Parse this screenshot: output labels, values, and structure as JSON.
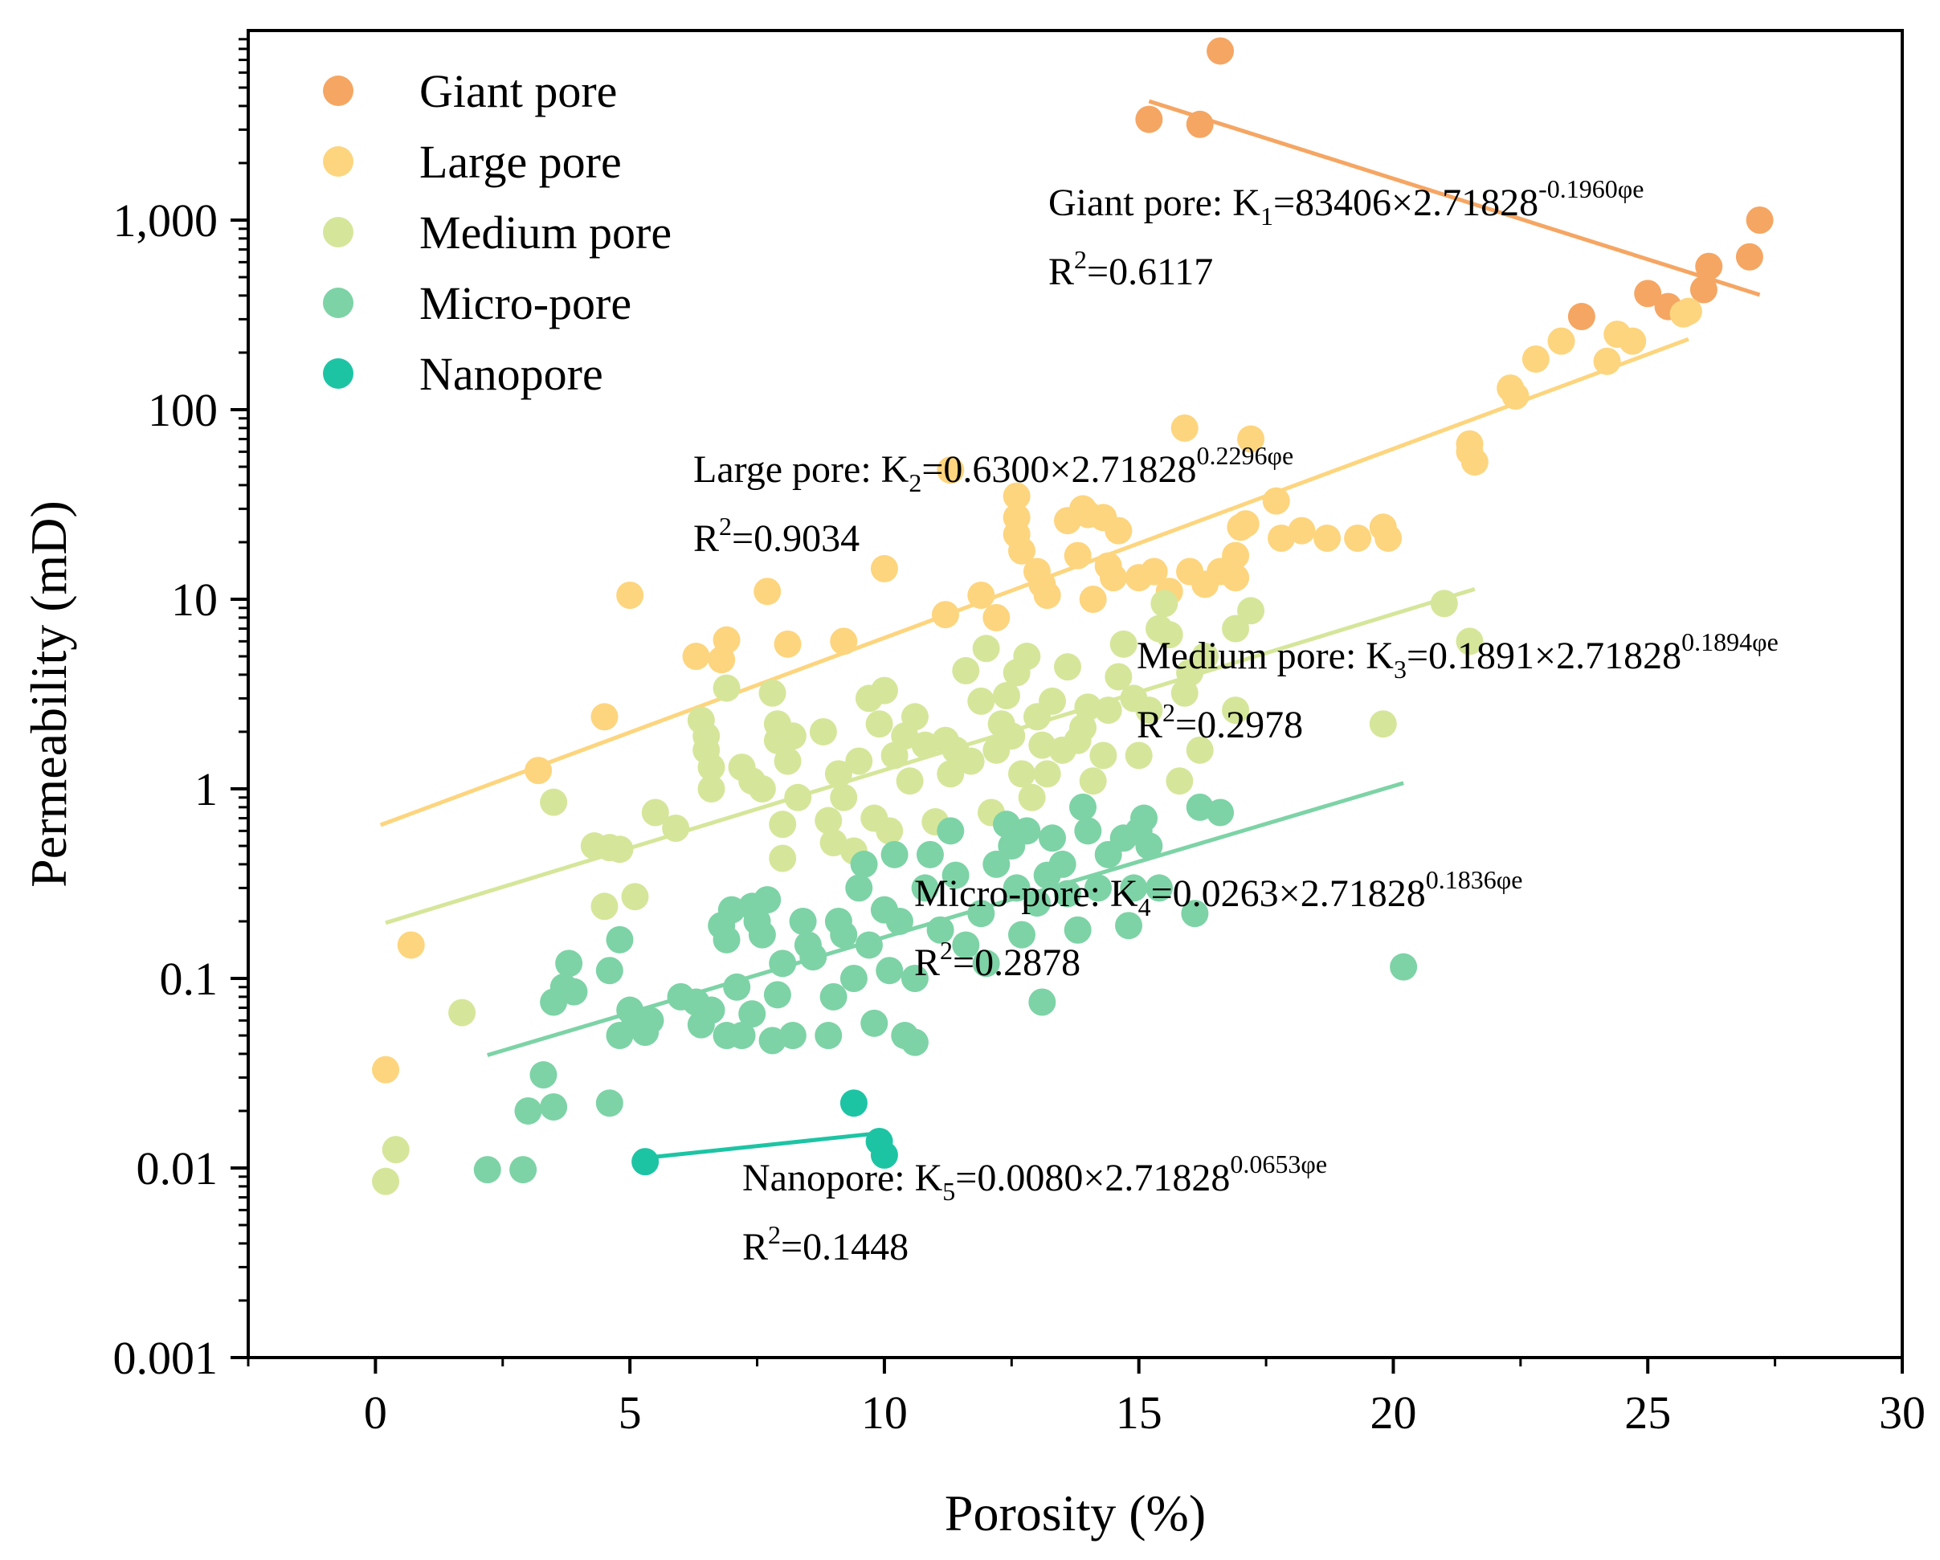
{
  "chart_data": {
    "type": "scatter",
    "title": "",
    "xlabel": "Porosity (%)",
    "ylabel": "Permeability (mD)",
    "xlim": [
      -2.5,
      30
    ],
    "ylim": [
      0.001,
      10000
    ],
    "y_scale": "log",
    "x_ticks": [
      0,
      5,
      10,
      15,
      20,
      25,
      30
    ],
    "y_ticks": [
      0.001,
      0.01,
      0.1,
      1,
      10,
      100,
      1000
    ],
    "y_tick_labels": [
      "0.001",
      "0.01",
      "0.1",
      "1",
      "10",
      "100",
      "1,000"
    ],
    "grid": false,
    "legend_position": "top-left",
    "series": [
      {
        "name": "Giant pore",
        "color": "#F5A663",
        "points": [
          [
            16.6,
            7800
          ],
          [
            15.2,
            3400
          ],
          [
            16.2,
            3200
          ],
          [
            27.2,
            1000
          ],
          [
            27.0,
            640
          ],
          [
            26.2,
            570
          ],
          [
            26.1,
            430
          ],
          [
            25.0,
            410
          ],
          [
            25.4,
            350
          ],
          [
            23.7,
            310
          ]
        ],
        "fit": {
          "a": 83406,
          "b": -0.196,
          "x_range": [
            15.2,
            27.2
          ]
        },
        "equation": {
          "prefix": "Giant pore: K",
          "sub": "1",
          "body": "=83406×2.71828",
          "sup": "-0.1960φe",
          "r2_prefix": "R",
          "r2_sup": "2",
          "r2_value": "=0.6117"
        }
      },
      {
        "name": "Large pore",
        "color": "#FDD57E",
        "points": [
          [
            0.2,
            0.033
          ],
          [
            0.7,
            0.15
          ],
          [
            3.2,
            1.25
          ],
          [
            4.5,
            2.4
          ],
          [
            5.0,
            10.5
          ],
          [
            6.3,
            5.0
          ],
          [
            6.8,
            4.8
          ],
          [
            6.9,
            6.1
          ],
          [
            7.7,
            11
          ],
          [
            8.1,
            5.8
          ],
          [
            9.2,
            6.0
          ],
          [
            10.0,
            14.5
          ],
          [
            11.2,
            8.3
          ],
          [
            11.3,
            48
          ],
          [
            11.9,
            10.5
          ],
          [
            12.2,
            8.0
          ],
          [
            12.6,
            35
          ],
          [
            12.6,
            27
          ],
          [
            12.6,
            22
          ],
          [
            12.7,
            18
          ],
          [
            13.0,
            14
          ],
          [
            13.1,
            12
          ],
          [
            13.2,
            10.5
          ],
          [
            13.6,
            26
          ],
          [
            13.9,
            30
          ],
          [
            13.8,
            17
          ],
          [
            14.0,
            28
          ],
          [
            14.1,
            10
          ],
          [
            14.3,
            27
          ],
          [
            14.4,
            15
          ],
          [
            14.5,
            13
          ],
          [
            14.6,
            23
          ],
          [
            15.0,
            13
          ],
          [
            15.3,
            14
          ],
          [
            15.6,
            11
          ],
          [
            15.9,
            80
          ],
          [
            16.0,
            14
          ],
          [
            16.3,
            12
          ],
          [
            16.6,
            14
          ],
          [
            16.9,
            13
          ],
          [
            16.9,
            17
          ],
          [
            17.0,
            24
          ],
          [
            17.1,
            25
          ],
          [
            17.2,
            70
          ],
          [
            17.7,
            33
          ],
          [
            17.8,
            21
          ],
          [
            18.2,
            23
          ],
          [
            18.7,
            21
          ],
          [
            19.3,
            21
          ],
          [
            19.8,
            24
          ],
          [
            19.9,
            21
          ],
          [
            21.5,
            66
          ],
          [
            21.5,
            60
          ],
          [
            21.6,
            53
          ],
          [
            22.3,
            130
          ],
          [
            22.4,
            118
          ],
          [
            22.8,
            185
          ],
          [
            23.3,
            230
          ],
          [
            24.2,
            180
          ],
          [
            24.4,
            250
          ],
          [
            24.7,
            230
          ],
          [
            25.7,
            320
          ],
          [
            25.8,
            330
          ]
        ],
        "fit": {
          "a": 0.63,
          "b": 0.2296,
          "x_range": [
            0.1,
            25.8
          ]
        },
        "equation": {
          "prefix": "Large pore: K",
          "sub": "2",
          "body": "=0.6300×2.71828",
          "sup": "0.2296φe",
          "r2_prefix": "R",
          "r2_sup": "2",
          "r2_value": "=0.9034"
        }
      },
      {
        "name": "Medium pore",
        "color": "#D5E69A",
        "points": [
          [
            0.2,
            0.0085
          ],
          [
            0.4,
            0.0125
          ],
          [
            1.7,
            0.066
          ],
          [
            3.5,
            0.85
          ],
          [
            4.3,
            0.5
          ],
          [
            4.6,
            0.49
          ],
          [
            4.8,
            0.48
          ],
          [
            4.5,
            0.24
          ],
          [
            5.1,
            0.27
          ],
          [
            5.5,
            0.75
          ],
          [
            5.9,
            0.62
          ],
          [
            6.4,
            2.3
          ],
          [
            6.5,
            1.9
          ],
          [
            6.5,
            1.6
          ],
          [
            6.6,
            1.3
          ],
          [
            6.6,
            1.0
          ],
          [
            6.9,
            3.4
          ],
          [
            7.2,
            1.3
          ],
          [
            7.4,
            1.1
          ],
          [
            7.6,
            1.0
          ],
          [
            7.8,
            3.2
          ],
          [
            7.9,
            2.2
          ],
          [
            7.9,
            1.8
          ],
          [
            8.0,
            0.65
          ],
          [
            8.0,
            0.43
          ],
          [
            8.1,
            1.4
          ],
          [
            8.2,
            1.9
          ],
          [
            8.3,
            0.9
          ],
          [
            8.8,
            2.0
          ],
          [
            8.9,
            0.68
          ],
          [
            9.0,
            0.52
          ],
          [
            9.1,
            1.2
          ],
          [
            9.2,
            0.9
          ],
          [
            9.4,
            0.47
          ],
          [
            9.5,
            1.4
          ],
          [
            9.7,
            3.0
          ],
          [
            9.8,
            0.7
          ],
          [
            9.9,
            2.2
          ],
          [
            10.0,
            3.3
          ],
          [
            10.1,
            0.6
          ],
          [
            10.2,
            1.5
          ],
          [
            10.4,
            1.9
          ],
          [
            10.5,
            1.1
          ],
          [
            10.6,
            2.4
          ],
          [
            10.8,
            1.7
          ],
          [
            11.0,
            0.67
          ],
          [
            11.2,
            1.8
          ],
          [
            11.3,
            1.2
          ],
          [
            11.4,
            1.6
          ],
          [
            11.6,
            4.2
          ],
          [
            11.7,
            1.4
          ],
          [
            11.9,
            2.9
          ],
          [
            12.0,
            5.5
          ],
          [
            12.1,
            0.75
          ],
          [
            12.2,
            1.6
          ],
          [
            12.3,
            2.2
          ],
          [
            12.4,
            3.1
          ],
          [
            12.5,
            1.9
          ],
          [
            12.6,
            4.1
          ],
          [
            12.7,
            1.2
          ],
          [
            12.8,
            5.0
          ],
          [
            12.9,
            0.9
          ],
          [
            13.0,
            2.4
          ],
          [
            13.1,
            1.7
          ],
          [
            13.2,
            1.2
          ],
          [
            13.3,
            2.9
          ],
          [
            13.5,
            1.6
          ],
          [
            13.6,
            4.4
          ],
          [
            13.8,
            1.8
          ],
          [
            13.9,
            2.1
          ],
          [
            14.0,
            2.7
          ],
          [
            14.1,
            1.1
          ],
          [
            14.3,
            1.5
          ],
          [
            14.4,
            2.6
          ],
          [
            14.6,
            3.9
          ],
          [
            14.7,
            5.8
          ],
          [
            14.9,
            3.0
          ],
          [
            15.0,
            1.5
          ],
          [
            15.2,
            2.6
          ],
          [
            15.4,
            7.0
          ],
          [
            15.5,
            9.5
          ],
          [
            15.6,
            6.5
          ],
          [
            15.8,
            1.1
          ],
          [
            15.9,
            3.2
          ],
          [
            16.0,
            4.1
          ],
          [
            16.2,
            1.6
          ],
          [
            16.3,
            5.0
          ],
          [
            16.9,
            7.0
          ],
          [
            16.9,
            2.6
          ],
          [
            17.2,
            8.7
          ],
          [
            19.8,
            2.2
          ],
          [
            21.0,
            9.5
          ],
          [
            21.5,
            6.0
          ]
        ],
        "fit": {
          "a": 0.1891,
          "b": 0.1894,
          "x_range": [
            0.2,
            21.6
          ]
        },
        "equation": {
          "prefix": "Medium pore: K",
          "sub": "3",
          "body": "=0.1891×2.71828",
          "sup": "0.1894φe",
          "r2_prefix": "R",
          "r2_sup": "2",
          "r2_value": "=0.2978"
        }
      },
      {
        "name": "Micro-pore",
        "color": "#7DD3A6",
        "points": [
          [
            2.2,
            0.0098
          ],
          [
            2.9,
            0.0098
          ],
          [
            3.0,
            0.02
          ],
          [
            3.3,
            0.031
          ],
          [
            3.5,
            0.021
          ],
          [
            3.5,
            0.075
          ],
          [
            3.7,
            0.09
          ],
          [
            3.8,
            0.12
          ],
          [
            3.9,
            0.085
          ],
          [
            4.6,
            0.022
          ],
          [
            4.6,
            0.11
          ],
          [
            4.8,
            0.16
          ],
          [
            4.8,
            0.05
          ],
          [
            5.0,
            0.068
          ],
          [
            5.1,
            0.058
          ],
          [
            5.3,
            0.052
          ],
          [
            5.4,
            0.06
          ],
          [
            6.0,
            0.08
          ],
          [
            6.3,
            0.075
          ],
          [
            6.4,
            0.057
          ],
          [
            6.6,
            0.068
          ],
          [
            6.8,
            0.19
          ],
          [
            6.9,
            0.16
          ],
          [
            6.9,
            0.05
          ],
          [
            7.0,
            0.23
          ],
          [
            7.1,
            0.09
          ],
          [
            7.2,
            0.05
          ],
          [
            7.4,
            0.24
          ],
          [
            7.4,
            0.065
          ],
          [
            7.5,
            0.2
          ],
          [
            7.6,
            0.17
          ],
          [
            7.7,
            0.26
          ],
          [
            7.8,
            0.047
          ],
          [
            7.9,
            0.082
          ],
          [
            8.0,
            0.12
          ],
          [
            8.2,
            0.05
          ],
          [
            8.4,
            0.2
          ],
          [
            8.5,
            0.15
          ],
          [
            8.6,
            0.13
          ],
          [
            8.9,
            0.05
          ],
          [
            9.0,
            0.08
          ],
          [
            9.1,
            0.2
          ],
          [
            9.2,
            0.17
          ],
          [
            9.4,
            0.1
          ],
          [
            9.5,
            0.3
          ],
          [
            9.6,
            0.4
          ],
          [
            9.7,
            0.15
          ],
          [
            9.8,
            0.058
          ],
          [
            10.0,
            0.23
          ],
          [
            10.1,
            0.11
          ],
          [
            10.2,
            0.45
          ],
          [
            10.3,
            0.2
          ],
          [
            10.4,
            0.05
          ],
          [
            10.6,
            0.046
          ],
          [
            10.6,
            0.1
          ],
          [
            10.8,
            0.3
          ],
          [
            10.9,
            0.45
          ],
          [
            11.1,
            0.18
          ],
          [
            11.3,
            0.6
          ],
          [
            11.4,
            0.35
          ],
          [
            11.6,
            0.15
          ],
          [
            11.9,
            0.22
          ],
          [
            12.0,
            0.12
          ],
          [
            12.2,
            0.4
          ],
          [
            12.4,
            0.65
          ],
          [
            12.5,
            0.5
          ],
          [
            12.6,
            0.3
          ],
          [
            12.7,
            0.17
          ],
          [
            12.8,
            0.6
          ],
          [
            13.0,
            0.25
          ],
          [
            13.1,
            0.075
          ],
          [
            13.2,
            0.35
          ],
          [
            13.3,
            0.55
          ],
          [
            13.5,
            0.4
          ],
          [
            13.6,
            0.28
          ],
          [
            13.8,
            0.18
          ],
          [
            13.9,
            0.8
          ],
          [
            14.0,
            0.6
          ],
          [
            14.2,
            0.3
          ],
          [
            14.4,
            0.45
          ],
          [
            14.7,
            0.55
          ],
          [
            14.8,
            0.19
          ],
          [
            14.9,
            0.3
          ],
          [
            15.0,
            0.6
          ],
          [
            15.1,
            0.7
          ],
          [
            15.2,
            0.5
          ],
          [
            15.4,
            0.3
          ],
          [
            16.1,
            0.22
          ],
          [
            16.2,
            0.8
          ],
          [
            16.6,
            0.75
          ],
          [
            20.2,
            0.115
          ]
        ],
        "fit": {
          "a": 0.0263,
          "b": 0.1836,
          "x_range": [
            2.2,
            20.2
          ]
        },
        "equation": {
          "prefix": "Micro-pore: K",
          "sub": "4",
          "body": "=0.0263×2.71828",
          "sup": "0.1836φe",
          "r2_prefix": "R",
          "r2_sup": "2",
          "r2_value": "=0.2878"
        }
      },
      {
        "name": "Nanopore",
        "color": "#1DC4A4",
        "points": [
          [
            5.3,
            0.0108
          ],
          [
            9.4,
            0.022
          ],
          [
            9.9,
            0.0138
          ],
          [
            10.0,
            0.0117
          ]
        ],
        "fit": {
          "a": 0.008,
          "b": 0.0653,
          "x_range": [
            5.3,
            10.0
          ]
        },
        "equation": {
          "prefix": "Nanopore: K",
          "sub": "5",
          "body": "=0.0080×2.71828",
          "sup": "0.0653φe",
          "r2_prefix": "R",
          "r2_sup": "2",
          "r2_value": "=0.1448"
        }
      }
    ]
  }
}
